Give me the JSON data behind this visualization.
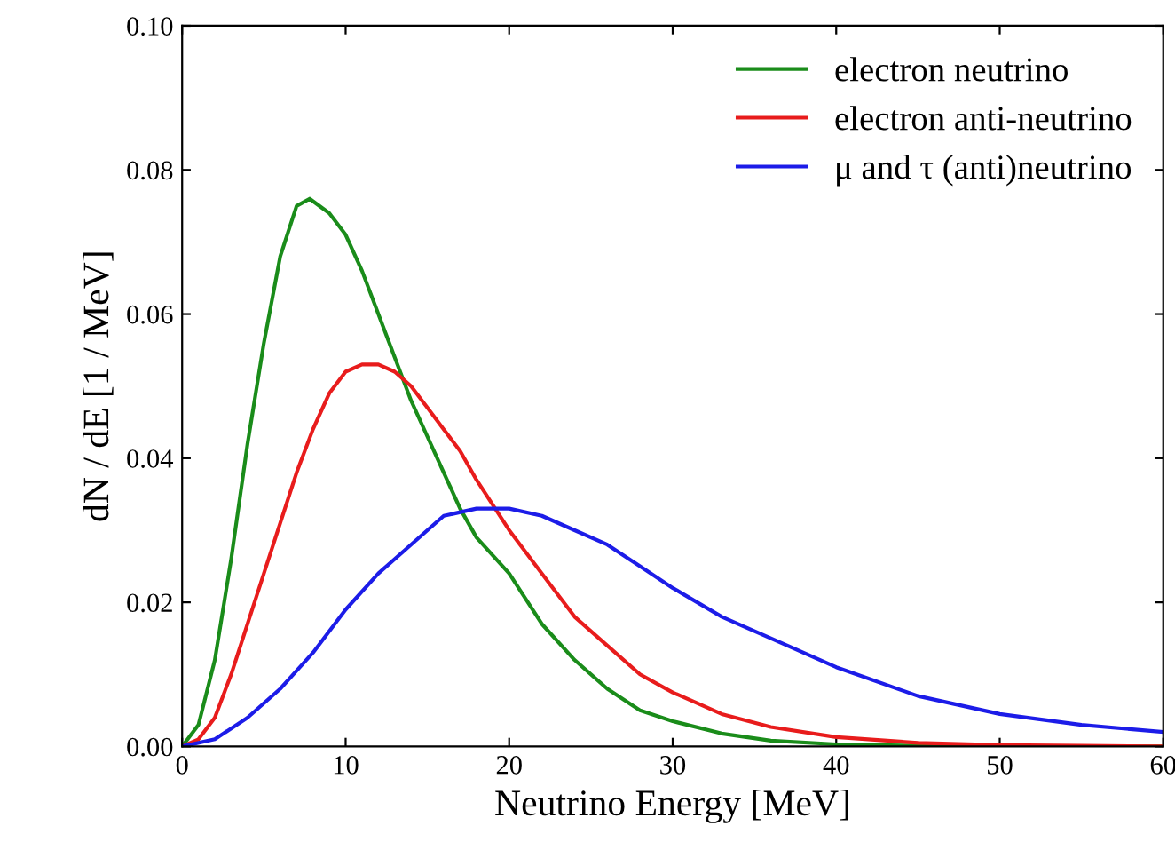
{
  "chart_data": {
    "type": "line",
    "xlabel": "Neutrino Energy [MeV]",
    "ylabel": "dN / dE [1 / MeV]",
    "xlim": [
      0,
      60
    ],
    "ylim": [
      0,
      0.1
    ],
    "xticks": [
      0,
      10,
      20,
      30,
      40,
      50,
      60
    ],
    "yticks": [
      {
        "value": 0,
        "label": "0.00"
      },
      {
        "value": 0.02,
        "label": "0.02"
      },
      {
        "value": 0.04,
        "label": "0.04"
      },
      {
        "value": 0.06,
        "label": "0.06"
      },
      {
        "value": 0.08,
        "label": "0.08"
      },
      {
        "value": 0.1,
        "label": "0.10"
      }
    ],
    "grid": false,
    "legend": "top right",
    "marker": "none",
    "line_style": "solid",
    "series": [
      {
        "name": "electron neutrino",
        "color": "#1a8c1a",
        "x": [
          0,
          1,
          2,
          3,
          4,
          5,
          6,
          7,
          7.8,
          9,
          10,
          11,
          12,
          13,
          14,
          15,
          16,
          17,
          18,
          20,
          22,
          24,
          26,
          28,
          30,
          33,
          36,
          40,
          45,
          50,
          60
        ],
        "values": [
          0,
          0.003,
          0.012,
          0.026,
          0.042,
          0.056,
          0.068,
          0.075,
          0.076,
          0.074,
          0.071,
          0.066,
          0.06,
          0.054,
          0.048,
          0.043,
          0.038,
          0.033,
          0.029,
          0.024,
          0.017,
          0.012,
          0.008,
          0.005,
          0.0035,
          0.0018,
          0.0008,
          0.0003,
          0.0001,
          0,
          0
        ]
      },
      {
        "name": "electron anti-neutrino",
        "color": "#e81c1c",
        "x": [
          0,
          1,
          2,
          3,
          4,
          5,
          6,
          7,
          8,
          9,
          10,
          11,
          12,
          13,
          14,
          15,
          16,
          17,
          18,
          20,
          22,
          24,
          26,
          28,
          30,
          33,
          36,
          40,
          45,
          50,
          55,
          60
        ],
        "values": [
          0,
          0.001,
          0.004,
          0.01,
          0.017,
          0.024,
          0.031,
          0.038,
          0.044,
          0.049,
          0.052,
          0.053,
          0.053,
          0.052,
          0.05,
          0.047,
          0.044,
          0.041,
          0.037,
          0.03,
          0.024,
          0.018,
          0.014,
          0.01,
          0.0075,
          0.0045,
          0.0027,
          0.0013,
          0.0005,
          0.0002,
          0.0001,
          0
        ]
      },
      {
        "name": "μ and τ (anti)neutrino",
        "color": "#1c1ce8",
        "x": [
          0,
          2,
          4,
          6,
          8,
          10,
          12,
          14,
          16,
          18,
          20,
          22,
          24,
          26,
          28,
          30,
          33,
          36,
          40,
          45,
          50,
          55,
          60
        ],
        "values": [
          0,
          0.001,
          0.004,
          0.008,
          0.013,
          0.019,
          0.024,
          0.028,
          0.032,
          0.033,
          0.033,
          0.032,
          0.03,
          0.028,
          0.025,
          0.022,
          0.018,
          0.015,
          0.011,
          0.007,
          0.0045,
          0.003,
          0.002
        ]
      }
    ]
  }
}
